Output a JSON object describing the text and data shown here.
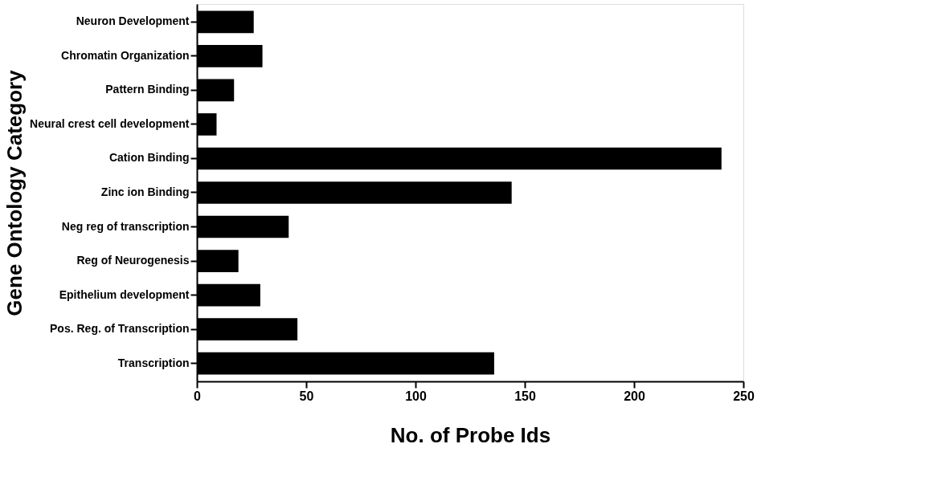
{
  "chart_data": {
    "type": "bar",
    "orientation": "horizontal",
    "categories": [
      "Neuron Development",
      "Chromatin Organization",
      "Pattern Binding",
      "Neural crest cell development",
      "Cation Binding",
      "Zinc ion Binding",
      "Neg reg of transcription",
      "Reg of Neurogenesis",
      "Epithelium development",
      "Pos. Reg. of Transcription",
      "Transcription"
    ],
    "values": [
      26,
      30,
      17,
      9,
      240,
      144,
      42,
      19,
      29,
      46,
      136
    ],
    "color": "#000000",
    "xlim": [
      0,
      250
    ],
    "xticks": [
      0,
      50,
      100,
      150,
      200,
      250
    ],
    "xlabel": "No. of Probe Ids",
    "ylabel": "Gene Ontology Category",
    "grid": false
  }
}
